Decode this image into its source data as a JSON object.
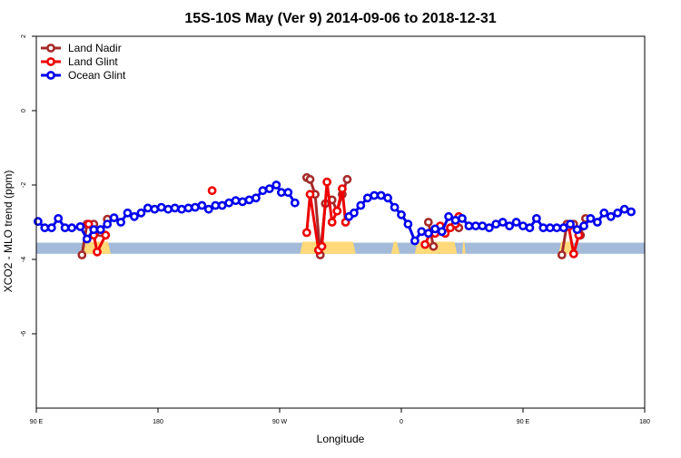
{
  "chart_data": {
    "type": "line",
    "title": "15S-10S May (Ver 9)   2014-09-06 to 2018-12-31",
    "xlabel": "Longitude",
    "ylabel": "XCO2 - MLO trend (ppm)",
    "xlim": [
      90,
      450
    ],
    "ylim": [
      -8,
      2
    ],
    "x_ticks": [
      {
        "value": 90,
        "label": "90 E"
      },
      {
        "value": 162,
        "label": "180"
      },
      {
        "value": 234,
        "label": "90 W"
      },
      {
        "value": 306,
        "label": "0"
      },
      {
        "value": 378,
        "label": "90 E"
      },
      {
        "value": 450,
        "label": "180"
      }
    ],
    "y_ticks": [
      {
        "value": 2,
        "label": "2"
      },
      {
        "value": 0,
        "label": "0"
      },
      {
        "value": -2,
        "label": "-2"
      },
      {
        "value": -4,
        "label": "-4"
      },
      {
        "value": -6,
        "label": "-6"
      }
    ],
    "grid": false,
    "legend_position": "top-left",
    "band": {
      "color": "#a3bad9",
      "y_top": -3.55,
      "y_bottom": -3.85
    },
    "land_segments": {
      "color": "#ffd97a",
      "ranges": [
        [
          117,
          134
        ],
        [
          246,
          279
        ],
        [
          300,
          305
        ],
        [
          314,
          339
        ],
        [
          342,
          344
        ],
        [
          399,
          408
        ]
      ]
    },
    "series": [
      {
        "name": "Land Nadir",
        "color": "#a52a2a",
        "segments": [
          [
            [
              117,
              -3.88
            ],
            [
              120,
              -3.05
            ],
            [
              124,
              -3.05
            ],
            [
              128,
              -3.28
            ],
            [
              132,
              -2.92
            ]
          ],
          [
            [
              250,
              -1.8
            ],
            [
              252,
              -1.85
            ],
            [
              255,
              -2.25
            ],
            [
              258,
              -3.88
            ],
            [
              261,
              -2.5
            ],
            [
              265,
              -2.4
            ],
            [
              268,
              -2.7
            ],
            [
              271,
              -2.25
            ],
            [
              274,
              -1.85
            ]
          ],
          [
            [
              322,
              -3.0
            ],
            [
              325,
              -3.65
            ]
          ],
          [
            [
              340,
              -3.15
            ]
          ],
          [
            [
              401,
              -3.88
            ],
            [
              404,
              -3.05
            ],
            [
              408,
              -3.05
            ],
            [
              412,
              -3.35
            ],
            [
              415,
              -2.9
            ]
          ]
        ]
      },
      {
        "name": "Land Glint",
        "color": "#ee0000",
        "segments": [
          [
            [
              121,
              -3.05
            ],
            [
              124,
              -3.35
            ],
            [
              126,
              -3.8
            ],
            [
              131,
              -3.35
            ]
          ],
          [
            [
              194,
              -2.15
            ]
          ],
          [
            [
              250,
              -3.28
            ],
            [
              252,
              -2.25
            ],
            [
              257,
              -3.75
            ],
            [
              259,
              -3.65
            ],
            [
              262,
              -1.92
            ],
            [
              265,
              -3.0
            ],
            [
              268,
              -2.7
            ],
            [
              271,
              -2.1
            ],
            [
              273,
              -3.0
            ]
          ],
          [
            [
              320,
              -3.6
            ],
            [
              323,
              -3.3
            ],
            [
              326,
              -3.3
            ],
            [
              329,
              -3.1
            ],
            [
              332,
              -3.3
            ],
            [
              335,
              -3.15
            ],
            [
              338,
              -3.05
            ],
            [
              340,
              -2.85
            ]
          ],
          [
            [
              405,
              -3.12
            ],
            [
              408,
              -3.85
            ],
            [
              411,
              -3.35
            ]
          ]
        ]
      },
      {
        "name": "Ocean Glint",
        "color": "#0000ee",
        "segments": [
          [
            [
              91,
              -2.98
            ],
            [
              95,
              -3.15
            ],
            [
              99,
              -3.15
            ],
            [
              103,
              -2.9
            ],
            [
              107,
              -3.15
            ],
            [
              111,
              -3.15
            ],
            [
              116,
              -3.12
            ],
            [
              120,
              -3.45
            ],
            [
              124,
              -3.2
            ],
            [
              128,
              -3.2
            ],
            [
              132,
              -3.05
            ],
            [
              136,
              -2.88
            ],
            [
              140,
              -3.0
            ],
            [
              144,
              -2.75
            ],
            [
              148,
              -2.85
            ],
            [
              152,
              -2.75
            ],
            [
              156,
              -2.62
            ],
            [
              160,
              -2.65
            ],
            [
              164,
              -2.6
            ],
            [
              168,
              -2.65
            ],
            [
              172,
              -2.62
            ],
            [
              176,
              -2.65
            ],
            [
              180,
              -2.62
            ],
            [
              184,
              -2.6
            ],
            [
              188,
              -2.55
            ],
            [
              192,
              -2.65
            ],
            [
              196,
              -2.55
            ],
            [
              200,
              -2.55
            ],
            [
              204,
              -2.48
            ],
            [
              208,
              -2.42
            ],
            [
              212,
              -2.45
            ],
            [
              216,
              -2.4
            ],
            [
              220,
              -2.35
            ],
            [
              224,
              -2.15
            ],
            [
              228,
              -2.1
            ],
            [
              232,
              -2.0
            ],
            [
              235,
              -2.2
            ],
            [
              239,
              -2.2
            ],
            [
              243,
              -2.48
            ]
          ],
          [
            [
              275,
              -2.85
            ],
            [
              278,
              -2.75
            ],
            [
              282,
              -2.55
            ],
            [
              286,
              -2.35
            ],
            [
              290,
              -2.28
            ],
            [
              294,
              -2.28
            ],
            [
              298,
              -2.35
            ],
            [
              302,
              -2.6
            ],
            [
              306,
              -2.8
            ],
            [
              310,
              -3.05
            ],
            [
              314,
              -3.5
            ],
            [
              318,
              -3.25
            ],
            [
              322,
              -3.3
            ],
            [
              326,
              -3.18
            ],
            [
              330,
              -3.25
            ],
            [
              334,
              -2.85
            ],
            [
              338,
              -2.95
            ],
            [
              342,
              -2.9
            ],
            [
              346,
              -3.1
            ],
            [
              350,
              -3.1
            ],
            [
              354,
              -3.1
            ],
            [
              358,
              -3.15
            ],
            [
              362,
              -3.05
            ],
            [
              366,
              -3.0
            ],
            [
              370,
              -3.1
            ],
            [
              374,
              -3.0
            ],
            [
              378,
              -3.1
            ],
            [
              382,
              -3.15
            ],
            [
              386,
              -2.9
            ],
            [
              390,
              -3.15
            ],
            [
              394,
              -3.15
            ],
            [
              398,
              -3.15
            ],
            [
              402,
              -3.15
            ],
            [
              406,
              -3.05
            ],
            [
              410,
              -3.2
            ],
            [
              414,
              -3.1
            ],
            [
              418,
              -2.9
            ],
            [
              422,
              -3.0
            ],
            [
              426,
              -2.75
            ],
            [
              430,
              -2.85
            ],
            [
              434,
              -2.75
            ],
            [
              438,
              -2.65
            ],
            [
              442,
              -2.72
            ]
          ]
        ]
      }
    ]
  }
}
